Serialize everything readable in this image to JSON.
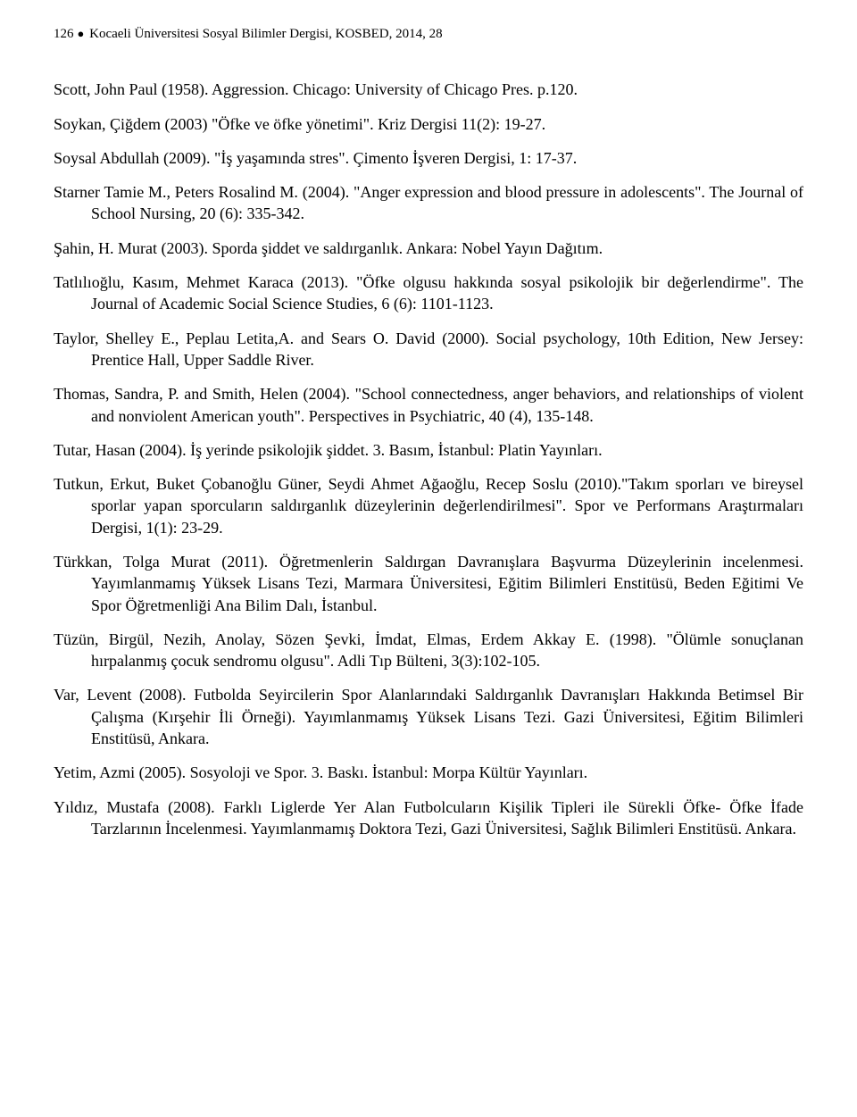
{
  "header": {
    "page_number": "126",
    "journal_line": "Kocaeli Üniversitesi Sosyal Bilimler Dergisi, KOSBED, 2014, 28"
  },
  "refs": [
    "Scott, John Paul (1958). Aggression. Chicago: University of Chicago Pres. p.120.",
    "Soykan, Çiğdem (2003) \"Öfke ve öfke yönetimi\". Kriz Dergisi 11(2): 19-27.",
    "Soysal Abdullah (2009). \"İş yaşamında stres\". Çimento İşveren Dergisi, 1: 17-37.",
    "Starner Tamie M., Peters Rosalind M. (2004). \"Anger expression and blood pressure in adolescents\". The Journal of School Nursing, 20 (6): 335-342.",
    "Şahin, H. Murat (2003). Sporda şiddet ve saldırganlık. Ankara: Nobel Yayın Dağıtım.",
    "Tatlılıoğlu, Kasım, Mehmet Karaca (2013). \"Öfke olgusu hakkında sosyal psikolojik bir değerlendirme\". The Journal of Academic Social Science Studies,  6 (6): 1101-1123.",
    "Taylor, Shelley E., Peplau Letita,A.  and Sears O. David (2000). Social psychology, 10th Edition, New Jersey:  Prentice Hall, Upper Saddle River.",
    "Thomas, Sandra, P. and Smith, Helen (2004). \"School connectedness, anger behaviors, and relationships of violent and nonviolent American youth\". Perspectives in Psychiatric, 40 (4), 135-148.",
    "Tutar, Hasan (2004). İş yerinde psikolojik şiddet. 3. Basım, İstanbul: Platin Yayınları.",
    "Tutkun, Erkut, Buket Çobanoğlu Güner, Seydi Ahmet Ağaoğlu, Recep Soslu (2010).\"Takım sporları ve bireysel sporlar yapan sporcuların saldırganlık düzeylerinin değerlendirilmesi\". Spor ve Performans Araştırmaları Dergisi, 1(1): 23-29.",
    "Türkkan, Tolga Murat (2011). Öğretmenlerin Saldırgan Davranışlara Başvurma Düzeylerinin incelenmesi. Yayımlanmamış Yüksek Lisans Tezi, Marmara Üniversitesi, Eğitim Bilimleri Enstitüsü, Beden Eğitimi Ve Spor Öğretmenliği Ana Bilim Dalı, İstanbul.",
    "Tüzün, Birgül, Nezih, Anolay, Sözen Şevki, İmdat, Elmas, Erdem Akkay E. (1998). \"Ölümle sonuçlanan hırpalanmış çocuk sendromu olgusu\". Adli Tıp Bülteni, 3(3):102-105.",
    "Var, Levent (2008). Futbolda Seyircilerin Spor Alanlarındaki Saldırganlık Davranışları Hakkında Betimsel Bir Çalışma (Kırşehir İli Örneği). Yayımlanmamış Yüksek Lisans Tezi. Gazi Üniversitesi, Eğitim Bilimleri Enstitüsü, Ankara.",
    "Yetim, Azmi (2005). Sosyoloji ve Spor. 3. Baskı. İstanbul: Morpa Kültür Yayınları.",
    "Yıldız, Mustafa (2008). Farklı Liglerde Yer Alan Futbolcuların Kişilik Tipleri ile Sürekli Öfke- Öfke İfade Tarzlarının İncelenmesi. Yayımlanmamış Doktora Tezi,  Gazi Üniversitesi, Sağlık Bilimleri Enstitüsü. Ankara."
  ]
}
